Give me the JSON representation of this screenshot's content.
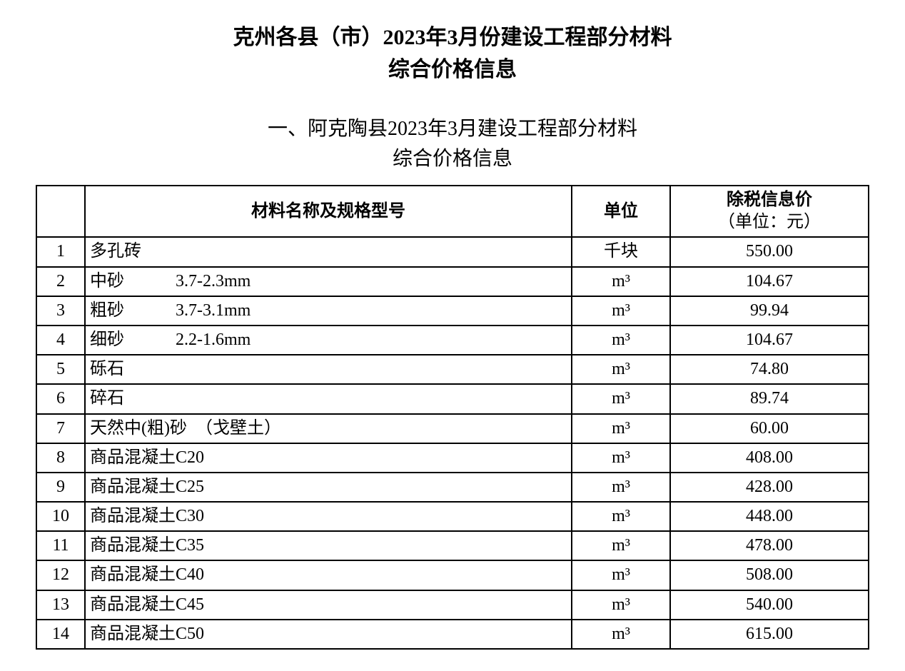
{
  "document": {
    "main_title_line1": "克州各县（市）2023年3月份建设工程部分材料",
    "main_title_line2": "综合价格信息",
    "sub_title_line1": "一、阿克陶县2023年3月建设工程部分材料",
    "sub_title_line2": "综合价格信息"
  },
  "table": {
    "headers": {
      "index": "",
      "name": "材料名称及规格型号",
      "unit": "单位",
      "price_line1": "除税信息价",
      "price_line2": "（单位：元）"
    },
    "columns_style": {
      "index_width": 50,
      "unit_width": 120,
      "price_width": 260,
      "border_color": "#000000",
      "font_size": 24
    },
    "rows": [
      {
        "idx": "1",
        "name": "多孔砖",
        "unit": "千块",
        "price": "550.00"
      },
      {
        "idx": "2",
        "name": "中砂　　　3.7-2.3mm",
        "unit": "m³",
        "price": "104.67"
      },
      {
        "idx": "3",
        "name": "粗砂　　　3.7-3.1mm",
        "unit": "m³",
        "price": "99.94"
      },
      {
        "idx": "4",
        "name": "细砂　　　2.2-1.6mm",
        "unit": "m³",
        "price": "104.67"
      },
      {
        "idx": "5",
        "name": "砾石",
        "unit": "m³",
        "price": "74.80"
      },
      {
        "idx": "6",
        "name": "碎石",
        "unit": "m³",
        "price": "89.74"
      },
      {
        "idx": "7",
        "name": "天然中(粗)砂　（戈壁土）",
        "unit": "m³",
        "price": "60.00"
      },
      {
        "idx": "8",
        "name": "商品混凝土C20",
        "unit": "m³",
        "price": "408.00"
      },
      {
        "idx": "9",
        "name": "商品混凝土C25",
        "unit": "m³",
        "price": "428.00"
      },
      {
        "idx": "10",
        "name": "商品混凝土C30",
        "unit": "m³",
        "price": "448.00"
      },
      {
        "idx": "11",
        "name": "商品混凝土C35",
        "unit": "m³",
        "price": "478.00"
      },
      {
        "idx": "12",
        "name": "商品混凝土C40",
        "unit": "m³",
        "price": "508.00"
      },
      {
        "idx": "13",
        "name": "商品混凝土C45",
        "unit": "m³",
        "price": "540.00"
      },
      {
        "idx": "14",
        "name": "商品混凝土C50",
        "unit": "m³",
        "price": "615.00"
      }
    ]
  }
}
